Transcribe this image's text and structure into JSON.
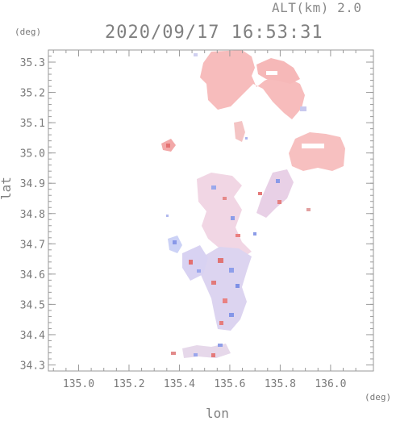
{
  "header": {
    "alt_label": "ALT(km) 2.0",
    "timestamp": "2020/09/17 16:53:31"
  },
  "colors": {
    "axis": "#9a9a9a",
    "warm_echo": "#f4b4b4",
    "cool_echo": "#b8c4f2"
  },
  "chart_data": {
    "type": "heatmap",
    "title": "2020/09/17 16:53:31",
    "subtitle": "ALT(km) 2.0",
    "xlabel": "lon",
    "ylabel": "lat",
    "x_unit": "(deg)",
    "y_unit": "(deg)",
    "xlim": [
      134.88,
      136.17
    ],
    "ylim": [
      34.28,
      35.34
    ],
    "x_ticks": [
      "135.0",
      "135.2",
      "135.4",
      "135.6",
      "135.8",
      "136.0"
    ],
    "y_ticks": [
      "34.3",
      "34.4",
      "34.5",
      "34.6",
      "34.7",
      "34.8",
      "34.9",
      "35.0",
      "35.1",
      "35.2",
      "35.3"
    ],
    "x_tick_values": [
      135.0,
      135.2,
      135.4,
      135.6,
      135.8,
      136.0
    ],
    "y_tick_values": [
      34.3,
      34.4,
      34.5,
      34.6,
      34.7,
      34.8,
      34.9,
      35.0,
      35.1,
      35.2,
      35.3
    ],
    "grid": false
  }
}
